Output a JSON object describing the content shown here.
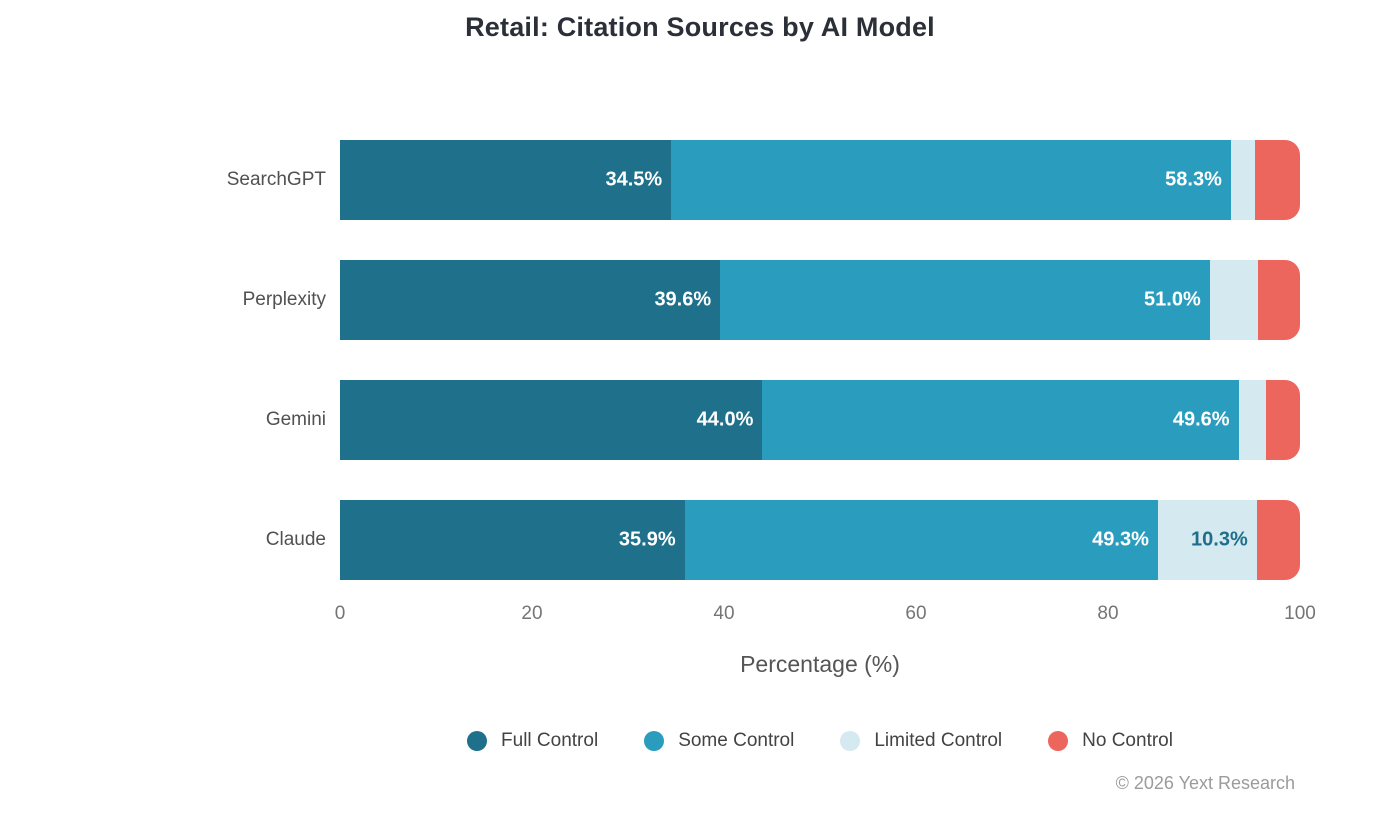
{
  "chart_data": {
    "type": "bar",
    "orientation": "horizontal",
    "stacked": true,
    "title": "Retail: Citation Sources by AI Model",
    "categories": [
      "SearchGPT",
      "Perplexity",
      "Gemini",
      "Claude"
    ],
    "series": [
      {
        "name": "Full Control",
        "color": "#1E708B",
        "label_color": "#FFFFFF",
        "values": [
          34.5,
          39.6,
          44.0,
          35.9
        ]
      },
      {
        "name": "Some Control",
        "color": "#2A9DBF",
        "label_color": "#FFFFFF",
        "values": [
          58.3,
          51.0,
          49.6,
          49.3
        ]
      },
      {
        "name": "Limited Control",
        "color": "#D5E9F0",
        "label_color": "#1E6F8B",
        "values": [
          2.5,
          5.0,
          2.9,
          10.3
        ]
      },
      {
        "name": "No Control",
        "color": "#ED665D",
        "label_color": "#FFFFFF",
        "values": [
          4.7,
          4.4,
          3.5,
          4.5
        ]
      }
    ],
    "xlabel": "Percentage (%)",
    "x_ticks": [
      0,
      20,
      40,
      60,
      80,
      100
    ],
    "xlim": [
      0,
      100
    ],
    "value_label_format": "{value}%",
    "value_label_min_to_show": 10,
    "legend_position": "bottom",
    "grid": false
  },
  "footer": {
    "credit": "© 2026 Yext Research"
  }
}
